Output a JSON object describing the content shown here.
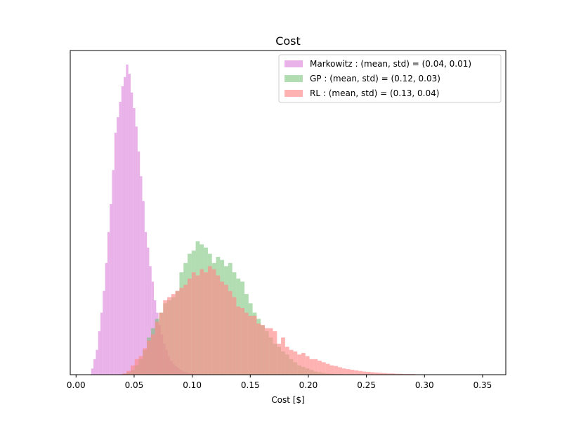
{
  "chart_data": {
    "type": "histogram",
    "title": "Cost",
    "xlabel": "Cost [$]",
    "ylabel": "",
    "xlim": [
      -0.005,
      0.37
    ],
    "ylim": [
      0,
      1.0
    ],
    "xticks": [
      "0.00",
      "0.05",
      "0.10",
      "0.15",
      "0.20",
      "0.25",
      "0.30",
      "0.35"
    ],
    "xtick_values": [
      0.0,
      0.05,
      0.1,
      0.15,
      0.2,
      0.25,
      0.3,
      0.35
    ],
    "y_axis_ticks_visible": false,
    "grid": false,
    "legend_position": "top-right",
    "series": [
      {
        "name": "Markowitz : (mean, std) = (0.04, 0.01)",
        "color": "#dd88dd",
        "alpha": 0.65,
        "bin_start": 0.013,
        "bin_width": 0.002,
        "counts": [
          0.02,
          0.05,
          0.08,
          0.14,
          0.2,
          0.27,
          0.36,
          0.46,
          0.55,
          0.66,
          0.78,
          0.83,
          0.88,
          0.93,
          0.96,
          1.0,
          0.97,
          0.91,
          0.86,
          0.8,
          0.72,
          0.64,
          0.56,
          0.46,
          0.41,
          0.35,
          0.3,
          0.24,
          0.2,
          0.16,
          0.13,
          0.1,
          0.08,
          0.06,
          0.045,
          0.035,
          0.028,
          0.022,
          0.016,
          0.012,
          0.009,
          0.007,
          0.005,
          0.004,
          0.003,
          0.002,
          0.002,
          0.001
        ]
      },
      {
        "name": "GP : (mean, std) = (0.12, 0.03)",
        "color": "#66bb66",
        "alpha": 0.5,
        "bin_start": 0.04,
        "bin_width": 0.0035,
        "counts": [
          0.003,
          0.008,
          0.015,
          0.03,
          0.05,
          0.08,
          0.12,
          0.15,
          0.18,
          0.2,
          0.23,
          0.24,
          0.25,
          0.27,
          0.33,
          0.36,
          0.39,
          0.4,
          0.43,
          0.42,
          0.41,
          0.39,
          0.36,
          0.38,
          0.37,
          0.35,
          0.36,
          0.33,
          0.31,
          0.3,
          0.26,
          0.23,
          0.2,
          0.18,
          0.16,
          0.14,
          0.12,
          0.1,
          0.09,
          0.075,
          0.065,
          0.05,
          0.04,
          0.03,
          0.025,
          0.02,
          0.015,
          0.01,
          0.008,
          0.006,
          0.004,
          0.003,
          0.002,
          0.002,
          0.001,
          0.001
        ]
      },
      {
        "name": "RL : (mean, std) = (0.13, 0.04)",
        "color": "#ff8888",
        "alpha": 0.65,
        "bin_start": 0.04,
        "bin_width": 0.0035,
        "counts": [
          0.004,
          0.012,
          0.03,
          0.05,
          0.06,
          0.085,
          0.11,
          0.13,
          0.17,
          0.2,
          0.24,
          0.25,
          0.26,
          0.27,
          0.28,
          0.29,
          0.31,
          0.33,
          0.32,
          0.34,
          0.33,
          0.35,
          0.34,
          0.32,
          0.3,
          0.29,
          0.27,
          0.25,
          0.22,
          0.215,
          0.2,
          0.19,
          0.19,
          0.165,
          0.16,
          0.15,
          0.15,
          0.14,
          0.1,
          0.12,
          0.09,
          0.08,
          0.075,
          0.065,
          0.07,
          0.06,
          0.05,
          0.05,
          0.045,
          0.04,
          0.035,
          0.03,
          0.028,
          0.024,
          0.02,
          0.018,
          0.016,
          0.014,
          0.012,
          0.01,
          0.009,
          0.008,
          0.007,
          0.006,
          0.005,
          0.004,
          0.004,
          0.003,
          0.003,
          0.002,
          0.002,
          0.002,
          0.001,
          0.001,
          0.001
        ]
      }
    ]
  }
}
